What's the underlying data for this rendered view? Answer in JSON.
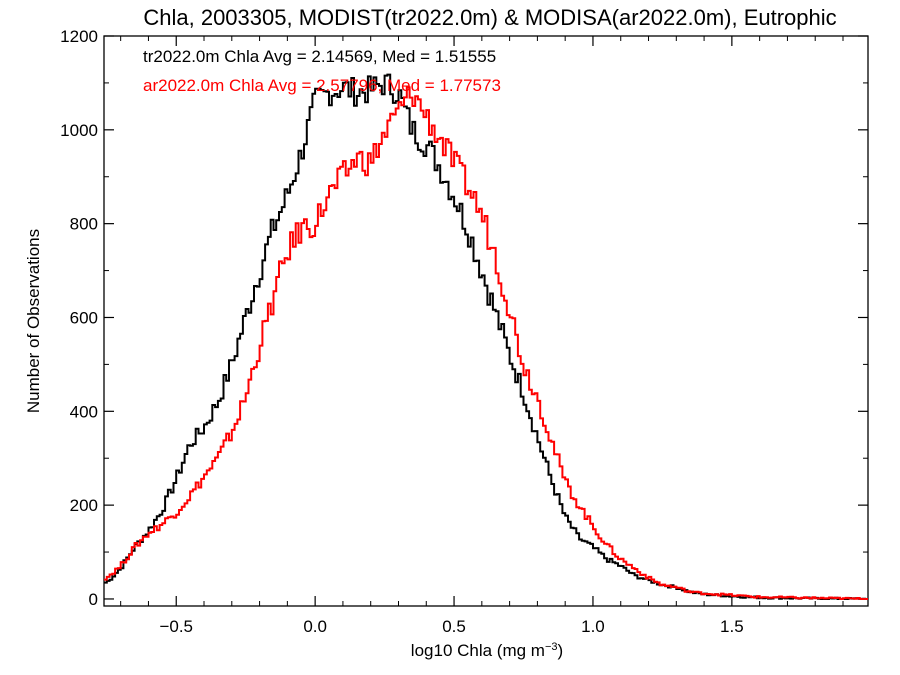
{
  "chart_data": {
    "type": "line",
    "title": "Chla, 2003305, MODIST(tr2022.0m) & MODISA(ar2022.0m), Eutrophic",
    "xlabel_main": "log10 Chla (mg m",
    "xlabel_exp": "−3",
    "xlabel_close": ")",
    "ylabel": "Number of Observations",
    "xlim": [
      -0.76,
      1.99
    ],
    "ylim": [
      -15,
      1200
    ],
    "x_ticks": [
      -0.5,
      0.0,
      0.5,
      1.0,
      1.5
    ],
    "x_tick_labels": [
      "−0.5",
      "0.0",
      "0.5",
      "1.0",
      "1.5"
    ],
    "y_ticks": [
      0,
      200,
      400,
      600,
      800,
      1000,
      1200
    ],
    "y_tick_labels": [
      "0",
      "200",
      "400",
      "600",
      "800",
      "1000",
      "1200"
    ],
    "grid": false,
    "step": "histogram",
    "annotations": [
      {
        "text": "tr2022.0m Chla Avg = 2.14569, Med = 1.51555",
        "color": "#000000"
      },
      {
        "text": "ar2022.0m Chla Avg = 2.57796, Med = 1.77573",
        "color": "#ff0000"
      }
    ],
    "series": [
      {
        "color": "#000000",
        "x": [
          -0.75,
          -0.7,
          -0.65,
          -0.6,
          -0.55,
          -0.5,
          -0.45,
          -0.4,
          -0.35,
          -0.3,
          -0.25,
          -0.2,
          -0.15,
          -0.1,
          -0.05,
          0.0,
          0.05,
          0.1,
          0.15,
          0.2,
          0.25,
          0.3,
          0.35,
          0.4,
          0.45,
          0.5,
          0.55,
          0.6,
          0.65,
          0.7,
          0.75,
          0.8,
          0.85,
          0.9,
          0.95,
          1.0,
          1.05,
          1.1,
          1.15,
          1.2,
          1.25,
          1.3,
          1.35,
          1.4,
          1.5,
          1.6,
          1.7,
          1.8,
          1.99
        ],
        "y": [
          35,
          65,
          110,
          145,
          190,
          255,
          330,
          365,
          420,
          500,
          600,
          700,
          790,
          860,
          950,
          1060,
          1080,
          1090,
          1080,
          1085,
          1100,
          1080,
          1000,
          970,
          920,
          860,
          790,
          700,
          610,
          520,
          440,
          345,
          255,
          175,
          130,
          110,
          85,
          70,
          50,
          40,
          30,
          25,
          15,
          10,
          6,
          3,
          2,
          1,
          0
        ]
      },
      {
        "color": "#ff0000",
        "x": [
          -0.75,
          -0.7,
          -0.65,
          -0.6,
          -0.55,
          -0.5,
          -0.45,
          -0.4,
          -0.35,
          -0.3,
          -0.25,
          -0.2,
          -0.15,
          -0.1,
          -0.05,
          0.0,
          0.05,
          0.1,
          0.15,
          0.2,
          0.25,
          0.3,
          0.35,
          0.4,
          0.45,
          0.5,
          0.55,
          0.6,
          0.65,
          0.7,
          0.75,
          0.8,
          0.85,
          0.9,
          0.95,
          1.0,
          1.05,
          1.1,
          1.15,
          1.2,
          1.25,
          1.3,
          1.35,
          1.4,
          1.5,
          1.6,
          1.7,
          1.8,
          1.99
        ],
        "y": [
          45,
          70,
          110,
          140,
          160,
          185,
          220,
          260,
          300,
          355,
          430,
          540,
          640,
          740,
          790,
          800,
          860,
          900,
          940,
          930,
          990,
          1040,
          1080,
          1030,
          980,
          930,
          880,
          820,
          730,
          620,
          500,
          430,
          340,
          250,
          200,
          155,
          115,
          85,
          65,
          45,
          30,
          25,
          15,
          12,
          8,
          4,
          3,
          2,
          0
        ]
      }
    ]
  }
}
